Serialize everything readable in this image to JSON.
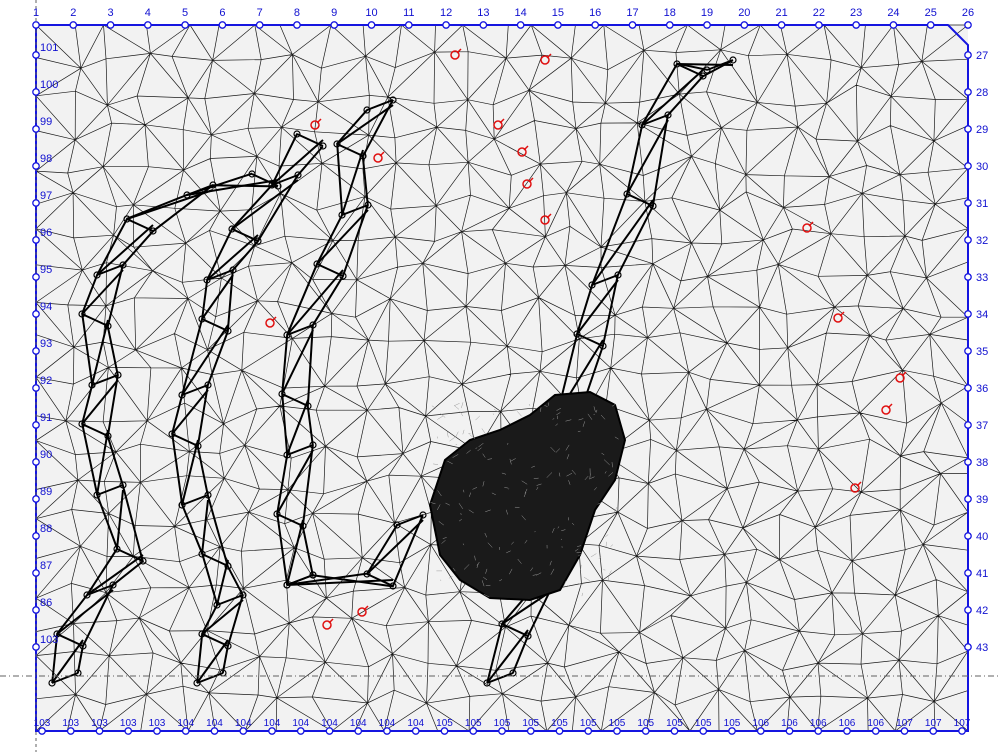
{
  "diagram": {
    "top_labels": [
      "1",
      "2",
      "3",
      "4",
      "5",
      "6",
      "7",
      "8",
      "9",
      "10",
      "11",
      "12",
      "13",
      "14",
      "15",
      "16",
      "17",
      "18",
      "19",
      "20",
      "21",
      "22",
      "23",
      "24",
      "25",
      "26"
    ],
    "right_labels": [
      "27",
      "28",
      "29",
      "30",
      "31",
      "32",
      "33",
      "34",
      "35",
      "36",
      "37",
      "38",
      "39",
      "40",
      "41",
      "42",
      "43"
    ],
    "left_labels": [
      "101",
      "100",
      "99",
      "98",
      "97",
      "96",
      "95",
      "94",
      "93",
      "92",
      "91",
      "90",
      "89",
      "88",
      "87",
      "86",
      "103"
    ],
    "bottom_labels": [
      "103",
      "103",
      "103",
      "103",
      "103",
      "104",
      "104",
      "104",
      "104",
      "104",
      "104",
      "104",
      "104",
      "104",
      "105",
      "105",
      "105",
      "105",
      "105",
      "105",
      "105",
      "105",
      "105",
      "105",
      "105",
      "106",
      "106",
      "106",
      "106",
      "106",
      "107",
      "107",
      "107"
    ],
    "colors": {
      "boundary": "#1515e0",
      "mesh": "#1a1a1a",
      "thick": "#000000",
      "background": "#f2f2f2",
      "wells": "#e01010",
      "axis_dash": "#606060"
    }
  }
}
